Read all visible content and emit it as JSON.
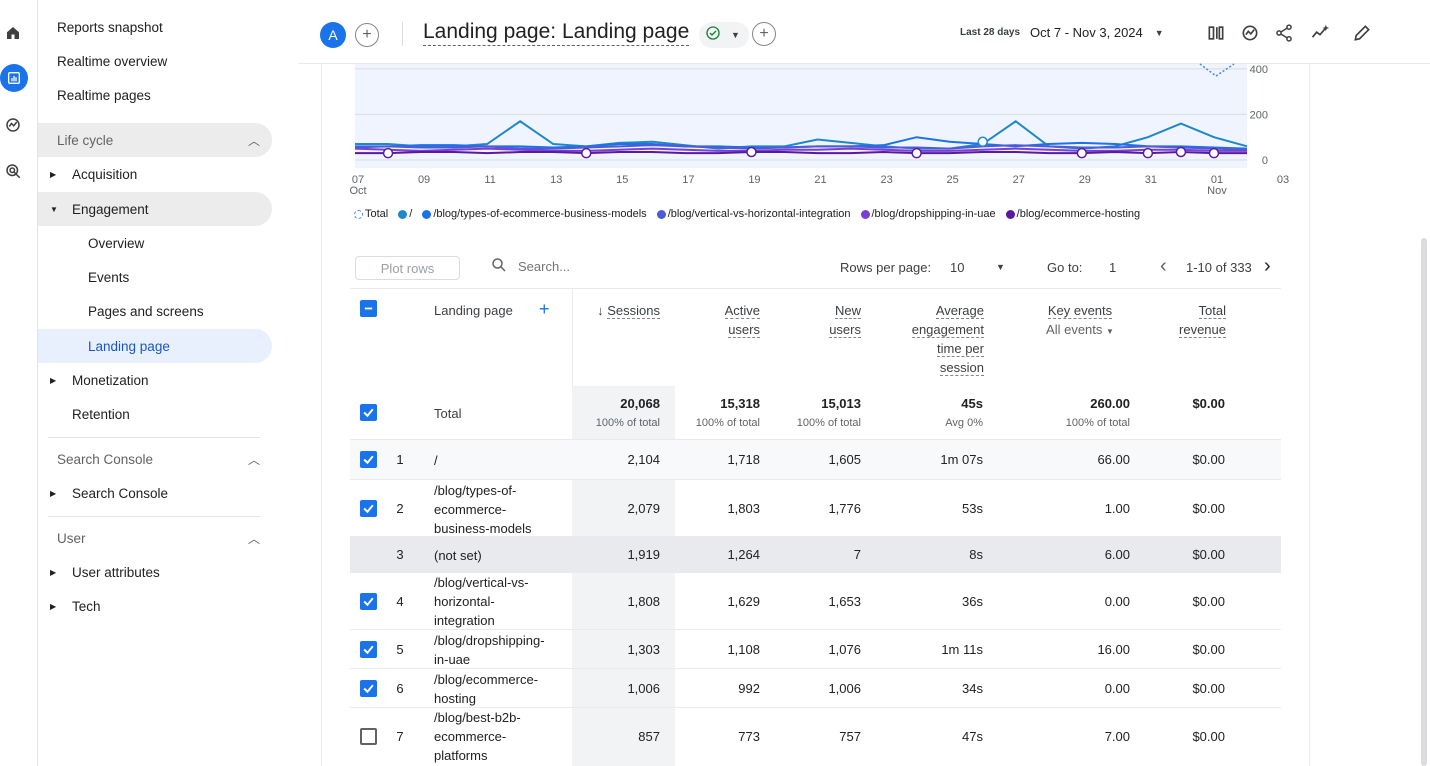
{
  "sidebar": {
    "items": [
      {
        "label": "Reports snapshot"
      },
      {
        "label": "Realtime overview"
      },
      {
        "label": "Realtime pages"
      },
      {
        "label": "Life cycle"
      },
      {
        "label": "Acquisition"
      },
      {
        "label": "Engagement"
      },
      {
        "label": "Overview"
      },
      {
        "label": "Events"
      },
      {
        "label": "Pages and screens"
      },
      {
        "label": "Landing page"
      },
      {
        "label": "Monetization"
      },
      {
        "label": "Retention"
      },
      {
        "label": "Search Console"
      },
      {
        "label": "Search Console"
      },
      {
        "label": "User"
      },
      {
        "label": "User attributes"
      },
      {
        "label": "Tech"
      }
    ]
  },
  "header": {
    "avatar_letter": "A",
    "title": "Landing page: Landing page",
    "date_label": "Last 28 days",
    "date_range": "Oct 7 - Nov 3, 2024"
  },
  "chart": {
    "y_ticks": [
      "400",
      "200",
      "0"
    ],
    "x_ticks": [
      {
        "d": "07",
        "m": "Oct"
      },
      {
        "d": "09",
        "m": ""
      },
      {
        "d": "11",
        "m": ""
      },
      {
        "d": "13",
        "m": ""
      },
      {
        "d": "15",
        "m": ""
      },
      {
        "d": "17",
        "m": ""
      },
      {
        "d": "19",
        "m": ""
      },
      {
        "d": "21",
        "m": ""
      },
      {
        "d": "23",
        "m": ""
      },
      {
        "d": "25",
        "m": ""
      },
      {
        "d": "27",
        "m": ""
      },
      {
        "d": "29",
        "m": ""
      },
      {
        "d": "31",
        "m": ""
      },
      {
        "d": "01",
        "m": "Nov"
      },
      {
        "d": "03",
        "m": ""
      }
    ],
    "legend": [
      {
        "label": "Total",
        "color": "#4285f4",
        "style": "dashed"
      },
      {
        "label": "/",
        "color": "#1e88c9"
      },
      {
        "label": "/blog/types-of-ecommerce-business-models",
        "color": "#1a73e8"
      },
      {
        "label": "/blog/vertical-vs-horizontal-integration",
        "color": "#4f5bd5"
      },
      {
        "label": "/blog/dropshipping-in-uae",
        "color": "#7b3fd6"
      },
      {
        "label": "/blog/ecommerce-hosting",
        "color": "#5b1a9e"
      }
    ]
  },
  "chart_data": {
    "type": "line",
    "x": [
      "Oct 7",
      "Oct 8",
      "Oct 9",
      "Oct 10",
      "Oct 11",
      "Oct 12",
      "Oct 13",
      "Oct 14",
      "Oct 15",
      "Oct 16",
      "Oct 17",
      "Oct 18",
      "Oct 19",
      "Oct 20",
      "Oct 21",
      "Oct 22",
      "Oct 23",
      "Oct 24",
      "Oct 25",
      "Oct 26",
      "Oct 27",
      "Oct 28",
      "Oct 29",
      "Oct 30",
      "Oct 31",
      "Nov 1",
      "Nov 2",
      "Nov 3"
    ],
    "ylim": [
      0,
      450
    ],
    "series": [
      {
        "name": "/",
        "color": "#1e88c9",
        "values": [
          70,
          70,
          60,
          60,
          70,
          170,
          70,
          60,
          75,
          80,
          65,
          50,
          60,
          60,
          90,
          75,
          60,
          50,
          50,
          70,
          170,
          60,
          50,
          60,
          100,
          160,
          100,
          60
        ]
      },
      {
        "name": "/blog/types-of-ecommerce-business-models",
        "color": "#1a73e8",
        "values": [
          60,
          60,
          65,
          65,
          60,
          60,
          55,
          60,
          70,
          70,
          60,
          60,
          55,
          55,
          60,
          60,
          65,
          100,
          80,
          70,
          60,
          70,
          75,
          70,
          60,
          60,
          55,
          50
        ]
      },
      {
        "name": "/blog/vertical-vs-horizontal-integration",
        "color": "#4f5bd5",
        "values": [
          55,
          60,
          55,
          55,
          60,
          50,
          50,
          55,
          60,
          65,
          60,
          55,
          50,
          55,
          60,
          60,
          55,
          55,
          50,
          60,
          65,
          60,
          55,
          55,
          60,
          55,
          50,
          45
        ]
      },
      {
        "name": "/blog/dropshipping-in-uae",
        "color": "#7b3fd6",
        "values": [
          50,
          45,
          40,
          45,
          50,
          45,
          40,
          40,
          45,
          50,
          45,
          40,
          40,
          45,
          45,
          50,
          45,
          40,
          40,
          45,
          50,
          45,
          40,
          40,
          45,
          45,
          40,
          40
        ]
      },
      {
        "name": "/blog/ecommerce-hosting",
        "color": "#5b1a9e",
        "values": [
          30,
          30,
          35,
          35,
          30,
          35,
          35,
          30,
          35,
          35,
          30,
          30,
          35,
          35,
          30,
          30,
          35,
          30,
          30,
          35,
          35,
          30,
          30,
          35,
          30,
          35,
          30,
          30
        ]
      }
    ]
  },
  "table": {
    "plot_rows": "Plot rows",
    "search_placeholder": "Search...",
    "rows_per_page_label": "Rows per page:",
    "rows_per_page": "10",
    "goto_label": "Go to:",
    "goto_value": "1",
    "range": "1-10 of 333",
    "headers": {
      "dimension": "Landing page",
      "sessions": "Sessions",
      "active_users": [
        "Active",
        "users"
      ],
      "new_users": [
        "New",
        "users"
      ],
      "avg_eng": [
        "Average",
        "engagement",
        "time per",
        "session"
      ],
      "key_events": "Key events",
      "key_events_sub": "All events",
      "total_revenue": [
        "Total",
        "revenue"
      ]
    },
    "total": {
      "label": "Total",
      "sessions": "20,068",
      "sessions_sub": "100% of total",
      "active": "15,318",
      "active_sub": "100% of total",
      "new": "15,013",
      "new_sub": "100% of total",
      "avg": "45s",
      "avg_sub": "Avg 0%",
      "key": "260.00",
      "key_sub": "100% of total",
      "rev": "$0.00"
    },
    "rows": [
      {
        "idx": "1",
        "lines": [
          "/"
        ],
        "sessions": "2,104",
        "active": "1,718",
        "new": "1,605",
        "avg": "1m 07s",
        "key": "66.00",
        "rev": "$0.00"
      },
      {
        "idx": "2",
        "lines": [
          "/blog/types-of-",
          "ecommerce-",
          "business-models"
        ],
        "sessions": "2,079",
        "active": "1,803",
        "new": "1,776",
        "avg": "53s",
        "key": "1.00",
        "rev": "$0.00"
      },
      {
        "idx": "3",
        "lines": [
          "(not set)"
        ],
        "sessions": "1,919",
        "active": "1,264",
        "new": "7",
        "avg": "8s",
        "key": "6.00",
        "rev": "$0.00"
      },
      {
        "idx": "4",
        "lines": [
          "/blog/vertical-vs-",
          "horizontal-",
          "integration"
        ],
        "sessions": "1,808",
        "active": "1,629",
        "new": "1,653",
        "avg": "36s",
        "key": "0.00",
        "rev": "$0.00"
      },
      {
        "idx": "5",
        "lines": [
          "/blog/dropshipping-",
          "in-uae"
        ],
        "sessions": "1,303",
        "active": "1,108",
        "new": "1,076",
        "avg": "1m 11s",
        "key": "16.00",
        "rev": "$0.00"
      },
      {
        "idx": "6",
        "lines": [
          "/blog/ecommerce-",
          "hosting"
        ],
        "sessions": "1,006",
        "active": "992",
        "new": "1,006",
        "avg": "34s",
        "key": "0.00",
        "rev": "$0.00"
      },
      {
        "idx": "7",
        "lines": [
          "/blog/best-b2b-",
          "ecommerce-",
          "platforms"
        ],
        "sessions": "857",
        "active": "773",
        "new": "757",
        "avg": "47s",
        "key": "7.00",
        "rev": "$0.00"
      }
    ]
  }
}
